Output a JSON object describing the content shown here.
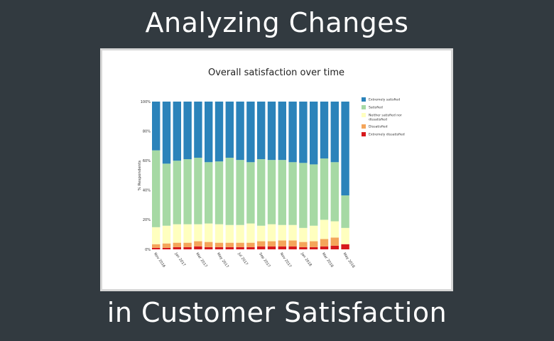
{
  "headline": {
    "top": "Analyzing Changes",
    "bottom": "in Customer Satisfaction"
  },
  "chart_data": {
    "type": "bar",
    "stacked": true,
    "title": "Overall satisfaction over time",
    "ylabel": "% Respondents",
    "xlabel": "",
    "ylim": [
      0,
      100
    ],
    "yticks": [
      "0%",
      "20%",
      "40%",
      "60%",
      "80%",
      "100%"
    ],
    "grid": false,
    "legend_position": "right",
    "categories": [
      "Nov 2016",
      "Dec 2016",
      "Jan 2017",
      "Feb 2017",
      "Mar 2017",
      "Apr 2017",
      "May 2017",
      "Jun 2017",
      "Jul 2017",
      "Aug 2017",
      "Sep 2017",
      "Oct 2017",
      "Nov 2017",
      "Dec 2017",
      "Jan 2018",
      "Feb 2018",
      "Mar 2018",
      "Apr 2018",
      "May 2018"
    ],
    "xtick_labels": [
      "Nov 2016",
      "Jan 2017",
      "Mar 2017",
      "May 2017",
      "Jul 2017",
      "Sep 2017",
      "Nov 2017",
      "Jan 2018",
      "Mar 2018",
      "May 2018"
    ],
    "series": [
      {
        "name": "Extremely dissatisfied",
        "color": "#d7191c",
        "values": [
          1,
          1,
          1.5,
          1.5,
          2,
          1.5,
          1.5,
          1.5,
          1.5,
          1.5,
          2,
          2,
          2,
          2,
          1.5,
          1.5,
          2,
          2.5,
          3.5
        ]
      },
      {
        "name": "Dissatisfied",
        "color": "#f4a55a",
        "values": [
          2.5,
          3,
          3,
          3,
          3.5,
          3.5,
          3,
          3,
          3,
          3,
          3.5,
          3.5,
          4,
          4,
          3.5,
          4,
          5,
          5.5,
          0
        ]
      },
      {
        "name": "Neither satisfied nor dissatisfied",
        "color": "#ffffbf",
        "values": [
          11.5,
          12,
          12.5,
          12.5,
          11.5,
          12.5,
          12.5,
          12,
          12,
          13,
          10.5,
          11.5,
          10.5,
          10.5,
          9.5,
          10.5,
          13,
          11,
          11
        ]
      },
      {
        "name": "Satisfied",
        "color": "#a6d9a4",
        "values": [
          52,
          42,
          43,
          44,
          45,
          41.5,
          42.5,
          45.5,
          44,
          41.5,
          45,
          43.5,
          44,
          42.5,
          44,
          41.5,
          41.5,
          40,
          22
        ]
      },
      {
        "name": "Extremely satisfied",
        "color": "#2b83ba",
        "values": [
          33,
          42,
          40,
          39,
          38,
          41,
          40.5,
          38,
          39.5,
          41,
          39,
          39.5,
          39.5,
          41,
          41.5,
          42.5,
          38.5,
          41,
          63.5
        ]
      }
    ],
    "legend_order": [
      "Extremely satisfied",
      "Satisfied",
      "Neither satisfied nor dissatisfied",
      "Dissatisfied",
      "Extremely dissatisfied"
    ],
    "legend_labels": {
      "Extremely satisfied": [
        "Extremely satisfied"
      ],
      "Satisfied": [
        "Satisfied"
      ],
      "Neither satisfied nor dissatisfied": [
        "Neither satisfied nor",
        "dissatisfied"
      ],
      "Dissatisfied": [
        "Dissatisfied"
      ],
      "Extremely dissatisfied": [
        "Extremely dissatisfied"
      ]
    }
  }
}
